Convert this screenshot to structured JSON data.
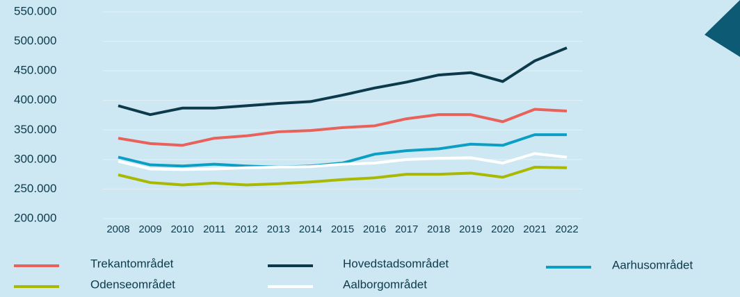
{
  "chart_data": {
    "type": "line",
    "categories": [
      "2008",
      "2009",
      "2010",
      "2011",
      "2012",
      "2013",
      "2014",
      "2015",
      "2016",
      "2017",
      "2018",
      "2019",
      "2020",
      "2021",
      "2022"
    ],
    "series": [
      {
        "name": "Trekantområdet",
        "color": "#e8615a",
        "values": [
          336000,
          327000,
          324000,
          336000,
          340000,
          347000,
          349000,
          354000,
          357000,
          369000,
          376000,
          376000,
          364000,
          385000,
          382000
        ]
      },
      {
        "name": "Hovedstadsområdet",
        "color": "#0d3a4a",
        "values": [
          391000,
          376000,
          387000,
          387000,
          391000,
          395000,
          398000,
          409000,
          421000,
          431000,
          443000,
          447000,
          432000,
          467000,
          489000
        ]
      },
      {
        "name": "Aarhusområdet",
        "color": "#0c9fc5",
        "values": [
          304000,
          291000,
          289000,
          292000,
          289000,
          287000,
          289000,
          294000,
          309000,
          315000,
          318000,
          326000,
          324000,
          342000,
          342000
        ]
      },
      {
        "name": "Odenseområdet",
        "color": "#a9b800",
        "values": [
          274000,
          261000,
          257000,
          260000,
          257000,
          259000,
          262000,
          266000,
          269000,
          275000,
          275000,
          277000,
          270000,
          287000,
          286000
        ]
      },
      {
        "name": "Aalborgområdet",
        "color": "#ffffff",
        "values": [
          297000,
          284000,
          283000,
          284000,
          286000,
          287000,
          288000,
          292000,
          294000,
          300000,
          302000,
          303000,
          294000,
          310000,
          304000
        ]
      }
    ],
    "ylim": [
      200000,
      550000
    ],
    "yticks": [
      {
        "value": 200000,
        "label": "200.000"
      },
      {
        "value": 250000,
        "label": "250.000"
      },
      {
        "value": 300000,
        "label": "300.000"
      },
      {
        "value": 350000,
        "label": "350.000"
      },
      {
        "value": 400000,
        "label": "400.000"
      },
      {
        "value": 450000,
        "label": "450.000"
      },
      {
        "value": 500000,
        "label": "500.000"
      },
      {
        "value": 550000,
        "label": "550.000"
      }
    ],
    "grid": true
  }
}
